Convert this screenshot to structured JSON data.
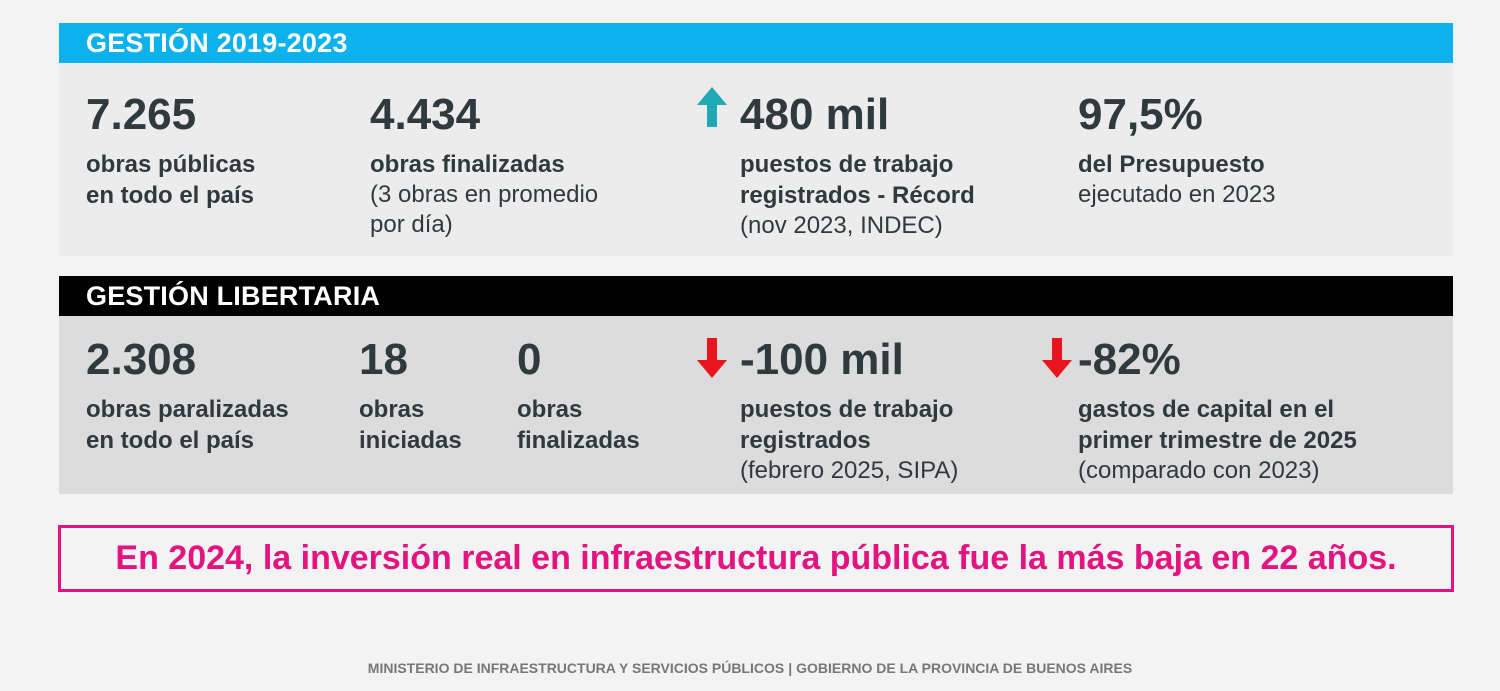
{
  "section1": {
    "title": "GESTIÓN 2019-2023",
    "stats": [
      {
        "value": "7.265",
        "label_lines": [
          "obras públicas",
          "en todo el país"
        ],
        "note_lines": []
      },
      {
        "value": "4.434",
        "label_lines": [
          "obras finalizadas"
        ],
        "note_lines": [
          "(3 obras en promedio",
          "por día)"
        ]
      },
      {
        "value": "480 mil",
        "label_lines": [
          "puestos de trabajo",
          "registrados - Récord"
        ],
        "note_lines": [
          "(nov 2023, INDEC)"
        ],
        "arrow": "arrow-up-icon",
        "arrow_color": "#1fa9b5"
      },
      {
        "value": "97,5%",
        "label_lines": [
          "del Presupuesto"
        ],
        "note_lines": [
          "ejecutado en 2023"
        ]
      }
    ]
  },
  "section2": {
    "title": "GESTIÓN LIBERTARIA",
    "stats": [
      {
        "value": "2.308",
        "label_lines": [
          "obras paralizadas",
          "en todo el país"
        ],
        "note_lines": []
      },
      {
        "value": "18",
        "label_lines": [
          "obras",
          "iniciadas"
        ],
        "note_lines": []
      },
      {
        "value": "0",
        "label_lines": [
          "obras",
          "finalizadas"
        ],
        "note_lines": []
      },
      {
        "value": "-100 mil",
        "label_lines": [
          "puestos de trabajo",
          "registrados"
        ],
        "note_lines": [
          "(febrero 2025, SIPA)"
        ],
        "arrow": "arrow-down-icon",
        "arrow_color": "#e8141e"
      },
      {
        "value": "-82%",
        "label_lines": [
          "gastos de capital en el",
          "primer trimestre de 2025"
        ],
        "note_lines": [
          "(comparado con 2023)"
        ],
        "arrow": "arrow-down-icon",
        "arrow_color": "#e8141e"
      }
    ]
  },
  "callout": "En 2024, la inversión real en infraestructura pública fue la más baja en 22 años.",
  "footer": {
    "left": "MINISTERIO DE INFRAESTRUCTURA Y SERVICIOS PÚBLICOS",
    "separator": "|",
    "right": "GOBIERNO DE LA PROVINCIA DE BUENOS AIRES"
  },
  "colors": {
    "header1_bg": "#0db2ec",
    "header2_bg": "#000000",
    "accent_pink": "#e3147f",
    "text_dark": "#2f3a3f"
  }
}
